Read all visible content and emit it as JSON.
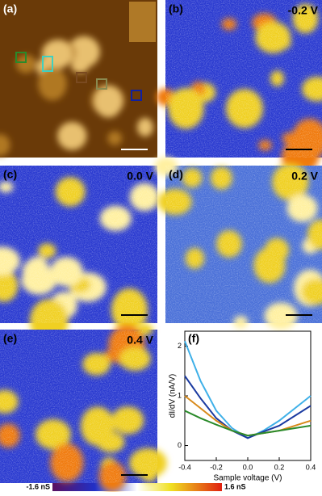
{
  "panels": [
    {
      "label": "(a)"
    },
    {
      "label": "(b)",
      "bias": "-0.2 V"
    },
    {
      "label": "(c)",
      "bias": "0.0 V"
    },
    {
      "label": "(d)",
      "bias": "0.2 V"
    },
    {
      "label": "(e)",
      "bias": "0.4 V"
    }
  ],
  "colorbar": {
    "min_label": "-1.6 nS",
    "max_label": "1.6 nS"
  },
  "chart_data": {
    "type": "line",
    "label": "(f)",
    "xlabel": "Sample voltage (V)",
    "ylabel": "dI/dV (nA/V)",
    "x": [
      -0.4,
      -0.3,
      -0.2,
      -0.1,
      0,
      0.1,
      0.2,
      0.3,
      0.4
    ],
    "series": [
      {
        "color": "#3fb0e8",
        "values": [
          2.1,
          1.3,
          0.7,
          0.35,
          0.15,
          0.3,
          0.5,
          0.75,
          1.0
        ]
      },
      {
        "color": "#1a3aa0",
        "values": [
          1.4,
          0.95,
          0.55,
          0.3,
          0.15,
          0.28,
          0.4,
          0.6,
          0.8
        ]
      },
      {
        "color": "#d88a1a",
        "values": [
          1.0,
          0.75,
          0.5,
          0.3,
          0.2,
          0.25,
          0.3,
          0.4,
          0.5
        ]
      },
      {
        "color": "#2a8a2a",
        "values": [
          0.7,
          0.55,
          0.42,
          0.3,
          0.2,
          0.25,
          0.3,
          0.35,
          0.4
        ]
      }
    ],
    "xlim": [
      -0.4,
      0.4
    ],
    "xticks": [
      -0.4,
      -0.2,
      {
        "value": 0,
        "label": "0.0"
      },
      0.2,
      0.4
    ],
    "ylim": [
      -0.3,
      2.3
    ],
    "yticks": [
      0,
      1,
      2
    ]
  }
}
